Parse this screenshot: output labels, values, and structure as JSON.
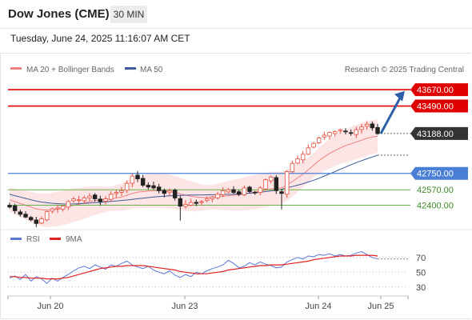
{
  "header": {
    "title": "Dow Jones (CME)",
    "interval": "30 MIN",
    "datetime": "Tuesday, June 24, 2025 11:16:07 AM CET"
  },
  "legend": {
    "ma20_label": "MA 20 + Bollinger Bands",
    "ma50_label": "MA 50",
    "credit": "Research © 2025 Trading Central",
    "rsi_label": "RSI",
    "rsi_ma_label": "9MA"
  },
  "colors": {
    "resistance": "#e00000",
    "support_blue": "#4a7fd6",
    "support_green": "#6ab04c",
    "ma20": "#f08080",
    "bollinger_fill": "#fde0e0",
    "ma50": "#3d5a99",
    "up_candle": "#e74c3c",
    "down_candle": "#222222",
    "rsi": "#5a78d6",
    "rsi_ma": "#e02020",
    "arrow": "#2b5fa8",
    "last_price_tag": "#333333"
  },
  "chart_data": [
    {
      "type": "candlestick",
      "title": "Dow Jones (CME)",
      "ylim": [
        42150,
        43820
      ],
      "x_ticks": [
        "Jun 20",
        "Jun 23",
        "Jun 24",
        "Jun 25"
      ],
      "levels": [
        {
          "value": 43670.0,
          "label": "43670.00",
          "kind": "resistance"
        },
        {
          "value": 43490.0,
          "label": "43490.00",
          "kind": "resistance"
        },
        {
          "value": 43188.0,
          "label": "43188.00",
          "kind": "last"
        },
        {
          "value": 42750.0,
          "label": "42750.00",
          "kind": "support-blue"
        },
        {
          "value": 42570.0,
          "label": "42570.00",
          "kind": "support-green"
        },
        {
          "value": 42400.0,
          "label": "42400.00",
          "kind": "support-green"
        }
      ],
      "price_path": [
        42380,
        42340,
        42300,
        42270,
        42240,
        42200,
        42250,
        42330,
        42360,
        42370,
        42390,
        42440,
        42470,
        42460,
        42480,
        42500,
        42470,
        42440,
        42470,
        42520,
        42540,
        42560,
        42640,
        42720,
        42690,
        42620,
        42600,
        42590,
        42560,
        42530,
        42560,
        42480,
        42390,
        42410,
        42430,
        42420,
        42440,
        42470,
        42490,
        42520,
        42560,
        42570,
        42540,
        42520,
        42590,
        42550,
        42540,
        42590,
        42680,
        42710,
        42560,
        42530,
        42770,
        42860,
        42910,
        42960,
        43030,
        43080,
        43140,
        43170,
        43200,
        43210,
        43230,
        43210,
        43190,
        43230,
        43260,
        43290,
        43250,
        43188
      ],
      "ma20": [
        42460,
        42440,
        42420,
        42400,
        42380,
        42360,
        42350,
        42345,
        42350,
        42360,
        42370,
        42385,
        42400,
        42410,
        42425,
        42440,
        42450,
        42460,
        42465,
        42470,
        42480,
        42490,
        42510,
        42530,
        42545,
        42550,
        42555,
        42560,
        42560,
        42555,
        42550,
        42540,
        42525,
        42510,
        42500,
        42490,
        42485,
        42485,
        42490,
        42495,
        42500,
        42505,
        42510,
        42515,
        42525,
        42535,
        42545,
        42555,
        42565,
        42580,
        42585,
        42590,
        42620,
        42660,
        42700,
        42740,
        42790,
        42840,
        42890,
        42930,
        42970,
        43000,
        43030,
        43055,
        43075,
        43095,
        43115,
        43135,
        43150,
        43160
      ],
      "ma50": [
        42520,
        42505,
        42490,
        42475,
        42460,
        42445,
        42435,
        42428,
        42422,
        42418,
        42415,
        42414,
        42415,
        42417,
        42420,
        42424,
        42428,
        42432,
        42437,
        42442,
        42447,
        42452,
        42458,
        42465,
        42472,
        42478,
        42484,
        42490,
        42495,
        42499,
        42503,
        42506,
        42508,
        42510,
        42512,
        42513,
        42514,
        42515,
        42516,
        42517,
        42518,
        42520,
        42522,
        42525,
        42528,
        42532,
        42537,
        42543,
        42550,
        42558,
        42566,
        42575,
        42590,
        42605,
        42620,
        42637,
        42655,
        42675,
        42697,
        42720,
        42745,
        42770,
        42795,
        42820,
        42845,
        42868,
        42890,
        42910,
        42930,
        42950
      ]
    },
    {
      "type": "line",
      "title": "RSI",
      "ylim": [
        20,
        85
      ],
      "y_ticks": [
        70,
        50,
        30
      ],
      "series": [
        {
          "name": "RSI",
          "values": [
            42,
            45,
            40,
            47,
            38,
            44,
            41,
            35,
            42,
            38,
            43,
            47,
            52,
            56,
            58,
            55,
            60,
            57,
            54,
            60,
            58,
            62,
            65,
            60,
            57,
            55,
            58,
            53,
            50,
            48,
            52,
            46,
            43,
            47,
            44,
            50,
            48,
            52,
            55,
            57,
            60,
            66,
            62,
            56,
            58,
            63,
            60,
            64,
            61,
            59,
            56,
            57,
            64,
            67,
            70,
            68,
            72,
            71,
            74,
            73,
            75,
            72,
            74,
            72,
            73,
            76,
            78,
            74,
            70,
            68
          ]
        },
        {
          "name": "9MA",
          "values": [
            44,
            44,
            43,
            43,
            42,
            42,
            42,
            41,
            41,
            41,
            42,
            43,
            45,
            47,
            49,
            51,
            53,
            55,
            56,
            57,
            58,
            58,
            59,
            59,
            59,
            59,
            58,
            57,
            56,
            55,
            54,
            53,
            51,
            50,
            49,
            48,
            48,
            48,
            49,
            50,
            51,
            53,
            54,
            55,
            56,
            57,
            58,
            59,
            59,
            60,
            60,
            60,
            61,
            62,
            63,
            64,
            65,
            67,
            68,
            69,
            70,
            71,
            72,
            72,
            72,
            73,
            73,
            73,
            73,
            72
          ]
        }
      ]
    }
  ]
}
